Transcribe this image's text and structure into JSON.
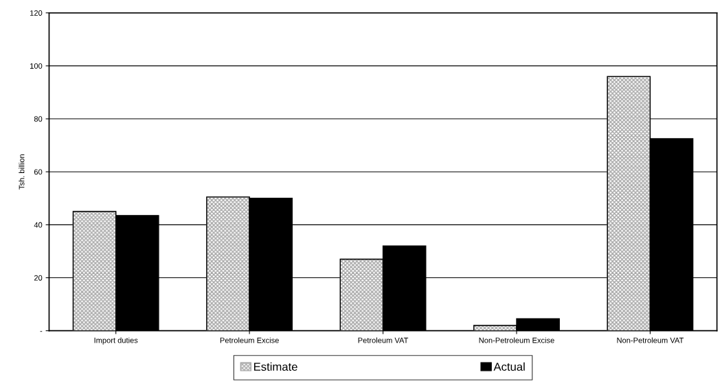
{
  "chart_data": {
    "type": "bar",
    "ylabel": "Tsh. billion",
    "categories": [
      "Import duties",
      "Petroleum Excise",
      "Petroleum VAT",
      "Non-Petroleum Excise",
      "Non-Petroleum VAT"
    ],
    "series": [
      {
        "name": "Estimate",
        "color": "#a6a6a6",
        "values": [
          45,
          50.5,
          27,
          2,
          96
        ]
      },
      {
        "name": "Actual",
        "color": "#000000",
        "values": [
          43.5,
          50,
          32,
          4.5,
          72.5
        ]
      }
    ],
    "ylim": [
      0,
      120
    ],
    "yticks": [
      {
        "value": 0,
        "label": "-"
      },
      20,
      40,
      60,
      80,
      100,
      120
    ],
    "grid": "y",
    "legend": "bottom"
  }
}
